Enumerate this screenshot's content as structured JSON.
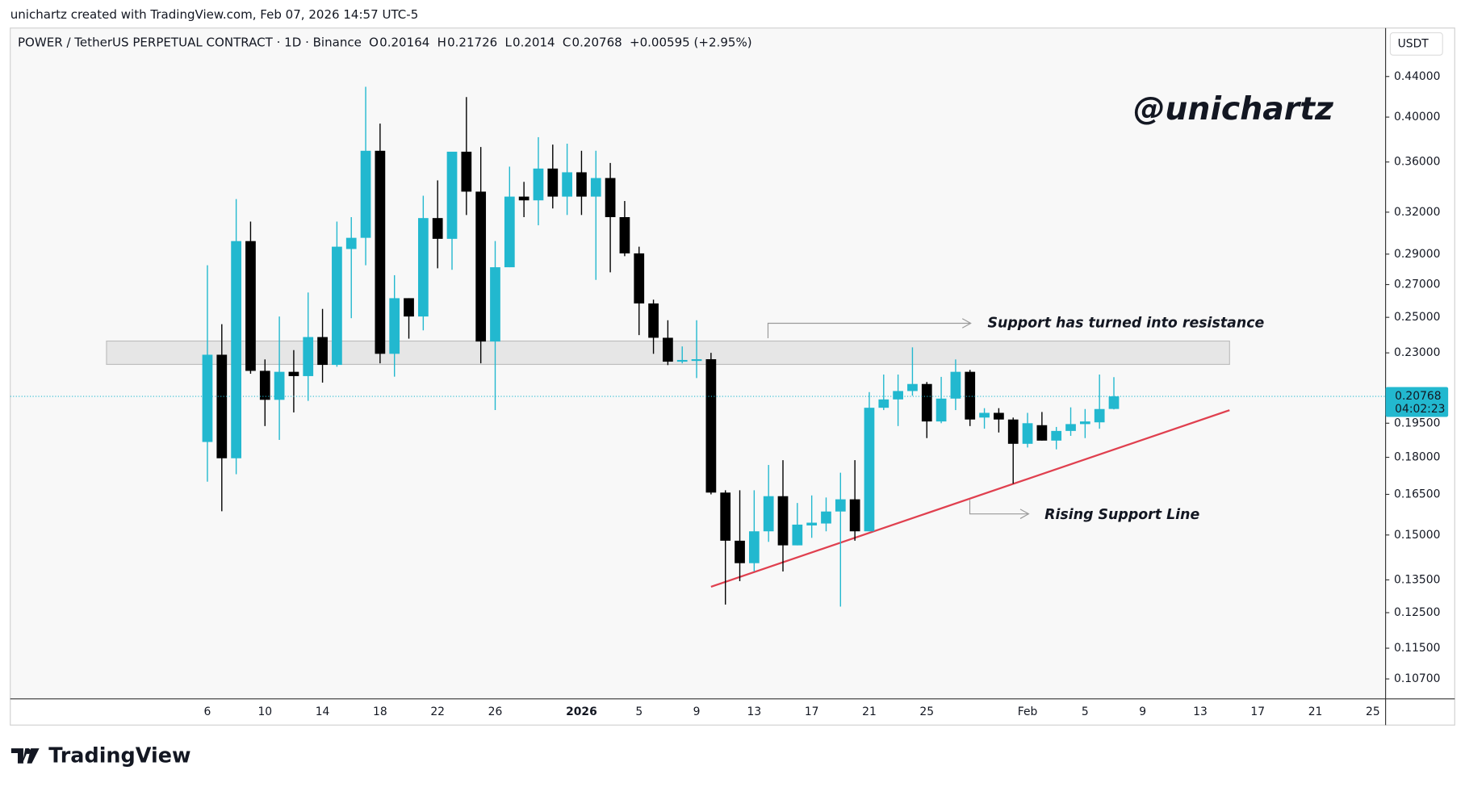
{
  "header": {
    "author_line": "unichartz created with TradingView.com, Feb 07, 2026 14:57 UTC-5",
    "symbol": "POWER / TetherUS PERPETUAL CONTRACT · 1D · Binance",
    "ohlc_keys": [
      "O",
      "H",
      "L",
      "C"
    ],
    "change": "+0.00595 (+2.95%)"
  },
  "footer": {
    "brand": "TradingView"
  },
  "chart_data": {
    "type": "candlestick",
    "currency": "USDT",
    "watermark": "@unichartz",
    "countdown": "04:02:23",
    "annotations": [
      "Support has turned into resistance",
      "Rising Support Line"
    ],
    "log_scale": true,
    "up_color": "#22b8cf",
    "down_color": "#000000",
    "categories": [
      "6",
      null,
      null,
      null,
      "10",
      null,
      null,
      null,
      "14",
      null,
      null,
      null,
      "18",
      null,
      null,
      null,
      "22",
      null,
      null,
      null,
      "26",
      null,
      null,
      null,
      null,
      null,
      "2026",
      null,
      null,
      null,
      "5",
      null,
      null,
      null,
      "9",
      null,
      null,
      null,
      "13",
      null,
      null,
      null,
      "17",
      null,
      null,
      null,
      "21",
      null,
      null,
      null,
      "25",
      null,
      null,
      null,
      null,
      null,
      null,
      "Feb",
      null,
      null,
      null,
      "5",
      null,
      null,
      null,
      "9",
      null,
      null,
      null,
      "13",
      null,
      null,
      null,
      "17",
      null,
      null,
      null,
      "21",
      null,
      null,
      null,
      "25"
    ],
    "open": [
      0.1866,
      0.229,
      0.1796,
      0.299,
      0.2205,
      0.206,
      0.22,
      0.2178,
      0.2387,
      0.2236,
      0.2935,
      0.3013,
      0.3696,
      0.2295,
      0.2615,
      0.2505,
      0.3156,
      0.3006,
      0.3688,
      0.3358,
      0.2362,
      0.2812,
      0.3319,
      0.329,
      0.3545,
      0.3319,
      0.3514,
      0.3319,
      0.3467,
      0.3163,
      0.2905,
      0.2583,
      0.2383,
      0.2253,
      0.2257,
      0.2266,
      0.1657,
      0.148,
      0.1404,
      0.1513,
      0.1643,
      0.1464,
      0.1534,
      0.1541,
      0.1585,
      0.1631,
      0.1513,
      0.2022,
      0.2062,
      0.2103,
      0.2138,
      0.1958,
      0.2066,
      0.22,
      0.1976,
      0.1998,
      0.1967,
      0.1858,
      0.1941,
      0.1872,
      0.1915,
      0.1946,
      0.1954,
      0.20164,
      null,
      null,
      null,
      null,
      null,
      null,
      null,
      null,
      null,
      null,
      null,
      null,
      null,
      null,
      null,
      null,
      null,
      null
    ],
    "high": [
      0.2825,
      0.246,
      0.33,
      0.313,
      0.2265,
      0.2505,
      0.2315,
      0.265,
      0.255,
      0.313,
      0.3163,
      0.4295,
      0.3939,
      0.276,
      0.2615,
      0.3326,
      0.3448,
      0.3688,
      0.4193,
      0.3729,
      0.299,
      0.3561,
      0.3436,
      0.3816,
      0.375,
      0.3758,
      0.3696,
      0.3696,
      0.3592,
      0.3285,
      0.2951,
      0.2606,
      0.2483,
      0.2335,
      0.2483,
      0.23,
      0.1666,
      0.1666,
      0.1666,
      0.1768,
      0.1788,
      0.1617,
      0.1646,
      0.1638,
      0.1736,
      0.1788,
      0.2098,
      0.2186,
      0.2186,
      0.233,
      0.2148,
      0.2174,
      0.2265,
      0.221,
      0.202,
      0.202,
      0.1976,
      0.1998,
      0.2002,
      0.1933,
      0.2024,
      0.2016,
      0.2186,
      0.21726,
      null,
      null,
      null,
      null,
      null,
      null,
      null,
      null,
      null,
      null,
      null,
      null,
      null,
      null,
      null,
      null,
      null,
      null
    ],
    "low": [
      0.17,
      0.1586,
      0.173,
      0.219,
      0.1937,
      0.1875,
      0.2,
      0.2055,
      0.2145,
      0.2226,
      0.2495,
      0.2825,
      0.2244,
      0.2175,
      0.2378,
      0.2425,
      0.2805,
      0.2795,
      0.3179,
      0.2244,
      0.2011,
      0.2812,
      0.3163,
      0.3103,
      0.3228,
      0.3179,
      0.3179,
      0.273,
      0.2779,
      0.2886,
      0.2398,
      0.2295,
      0.2235,
      0.2244,
      0.2168,
      0.165,
      0.1274,
      0.1346,
      0.1377,
      0.1476,
      0.1377,
      0.1464,
      0.149,
      0.1513,
      0.1268,
      0.148,
      0.1513,
      0.2011,
      0.1937,
      0.208,
      0.1883,
      0.195,
      0.2011,
      0.1937,
      0.1925,
      0.1908,
      0.1692,
      0.1842,
      0.1872,
      0.1834,
      0.1893,
      0.1883,
      0.1925,
      0.2014,
      null,
      null,
      null,
      null,
      null,
      null,
      null,
      null,
      null,
      null,
      null,
      null,
      null,
      null,
      null,
      null,
      null,
      null
    ],
    "close": [
      0.229,
      0.1796,
      0.299,
      0.2205,
      0.206,
      0.22,
      0.2178,
      0.2387,
      0.2236,
      0.2951,
      0.3013,
      0.3696,
      0.2295,
      0.2615,
      0.2505,
      0.3156,
      0.3006,
      0.3688,
      0.3358,
      0.2362,
      0.2812,
      0.3319,
      0.329,
      0.3545,
      0.3319,
      0.3514,
      0.3319,
      0.3467,
      0.3163,
      0.2905,
      0.2583,
      0.2383,
      0.2253,
      0.2262,
      0.2266,
      0.1657,
      0.148,
      0.1404,
      0.1513,
      0.1643,
      0.1464,
      0.1537,
      0.1544,
      0.1585,
      0.1631,
      0.1513,
      0.2022,
      0.2062,
      0.2103,
      0.2138,
      0.1958,
      0.2066,
      0.22,
      0.1967,
      0.1998,
      0.1967,
      0.1858,
      0.195,
      0.1872,
      0.1915,
      0.1946,
      0.1958,
      0.2016,
      0.20768,
      null,
      null,
      null,
      null,
      null,
      null,
      null,
      null,
      null,
      null,
      null,
      null,
      null,
      null,
      null,
      null,
      null,
      null
    ],
    "ylim": [
      0.1021,
      0.493
    ],
    "yticks": [
      {
        "value": 0.44,
        "label": "0.44000"
      },
      {
        "value": 0.4,
        "label": "0.40000"
      },
      {
        "value": 0.36,
        "label": "0.36000"
      },
      {
        "value": 0.32,
        "label": "0.32000"
      },
      {
        "value": 0.29,
        "label": "0.29000"
      },
      {
        "value": 0.27,
        "label": "0.27000"
      },
      {
        "value": 0.25,
        "label": "0.25000"
      },
      {
        "value": 0.23,
        "label": "0.23000"
      },
      {
        "value": 0.195,
        "label": "0.19500"
      },
      {
        "value": 0.18,
        "label": "0.18000"
      },
      {
        "value": 0.165,
        "label": "0.16500"
      },
      {
        "value": 0.15,
        "label": "0.15000"
      },
      {
        "value": 0.135,
        "label": "0.13500"
      },
      {
        "value": 0.125,
        "label": "0.12500"
      },
      {
        "value": 0.115,
        "label": "0.11500"
      },
      {
        "value": 0.107,
        "label": "0.10700"
      }
    ]
  }
}
